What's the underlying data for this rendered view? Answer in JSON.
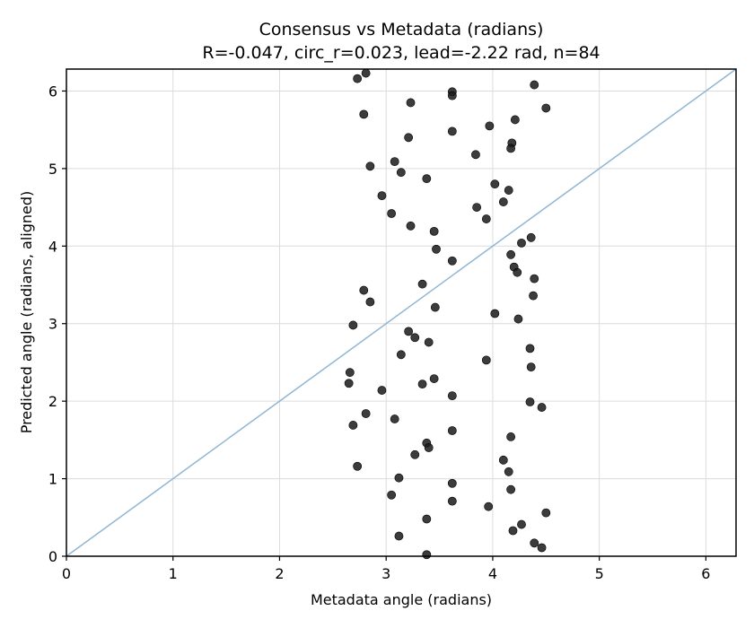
{
  "chart_data": {
    "type": "scatter",
    "title": "Consensus vs Metadata (radians)",
    "subtitle": "R=-0.047, circ_r=0.023, lead=-2.22 rad, n=84",
    "xlabel": "Metadata angle (radians)",
    "ylabel": "Predicted angle (radians, aligned)",
    "xlim": [
      0,
      6.283
    ],
    "ylim": [
      0,
      6.283
    ],
    "xticks": [
      0,
      1,
      2,
      3,
      4,
      5,
      6
    ],
    "yticks": [
      0,
      1,
      2,
      3,
      4,
      5,
      6
    ],
    "grid": true,
    "reference_line": {
      "x": [
        0,
        6.283
      ],
      "y": [
        0,
        6.283
      ],
      "color": "#8fb6d4"
    },
    "point_color": "#1a1a1a",
    "points": [
      {
        "x": 2.73,
        "y": 6.16
      },
      {
        "x": 2.81,
        "y": 6.23
      },
      {
        "x": 3.62,
        "y": 5.99
      },
      {
        "x": 3.62,
        "y": 5.94
      },
      {
        "x": 4.39,
        "y": 6.08
      },
      {
        "x": 2.79,
        "y": 5.7
      },
      {
        "x": 3.23,
        "y": 5.85
      },
      {
        "x": 4.5,
        "y": 5.78
      },
      {
        "x": 4.21,
        "y": 5.63
      },
      {
        "x": 3.97,
        "y": 5.55
      },
      {
        "x": 3.62,
        "y": 5.48
      },
      {
        "x": 3.21,
        "y": 5.4
      },
      {
        "x": 4.18,
        "y": 5.33
      },
      {
        "x": 4.17,
        "y": 5.26
      },
      {
        "x": 3.84,
        "y": 5.18
      },
      {
        "x": 3.08,
        "y": 5.09
      },
      {
        "x": 2.85,
        "y": 5.03
      },
      {
        "x": 3.14,
        "y": 4.95
      },
      {
        "x": 3.38,
        "y": 4.87
      },
      {
        "x": 4.02,
        "y": 4.8
      },
      {
        "x": 4.15,
        "y": 4.72
      },
      {
        "x": 2.96,
        "y": 4.65
      },
      {
        "x": 4.1,
        "y": 4.57
      },
      {
        "x": 3.85,
        "y": 4.5
      },
      {
        "x": 3.05,
        "y": 4.42
      },
      {
        "x": 3.94,
        "y": 4.35
      },
      {
        "x": 3.23,
        "y": 4.26
      },
      {
        "x": 3.45,
        "y": 4.19
      },
      {
        "x": 4.36,
        "y": 4.11
      },
      {
        "x": 4.27,
        "y": 4.04
      },
      {
        "x": 3.47,
        "y": 3.96
      },
      {
        "x": 4.17,
        "y": 3.89
      },
      {
        "x": 3.62,
        "y": 3.81
      },
      {
        "x": 4.2,
        "y": 3.73
      },
      {
        "x": 4.23,
        "y": 3.66
      },
      {
        "x": 4.39,
        "y": 3.58
      },
      {
        "x": 3.34,
        "y": 3.51
      },
      {
        "x": 2.79,
        "y": 3.43
      },
      {
        "x": 4.38,
        "y": 3.36
      },
      {
        "x": 2.85,
        "y": 3.28
      },
      {
        "x": 3.46,
        "y": 3.21
      },
      {
        "x": 4.02,
        "y": 3.13
      },
      {
        "x": 4.24,
        "y": 3.06
      },
      {
        "x": 2.69,
        "y": 2.98
      },
      {
        "x": 3.21,
        "y": 2.9
      },
      {
        "x": 3.27,
        "y": 2.82
      },
      {
        "x": 3.4,
        "y": 2.76
      },
      {
        "x": 4.35,
        "y": 2.68
      },
      {
        "x": 3.14,
        "y": 2.6
      },
      {
        "x": 3.94,
        "y": 2.53
      },
      {
        "x": 4.36,
        "y": 2.44
      },
      {
        "x": 2.66,
        "y": 2.37
      },
      {
        "x": 3.45,
        "y": 2.29
      },
      {
        "x": 2.65,
        "y": 2.23
      },
      {
        "x": 3.34,
        "y": 2.22
      },
      {
        "x": 2.96,
        "y": 2.14
      },
      {
        "x": 3.62,
        "y": 2.07
      },
      {
        "x": 4.35,
        "y": 1.99
      },
      {
        "x": 4.46,
        "y": 1.92
      },
      {
        "x": 2.81,
        "y": 1.84
      },
      {
        "x": 3.08,
        "y": 1.77
      },
      {
        "x": 2.69,
        "y": 1.69
      },
      {
        "x": 3.62,
        "y": 1.62
      },
      {
        "x": 4.17,
        "y": 1.54
      },
      {
        "x": 3.38,
        "y": 1.46
      },
      {
        "x": 3.4,
        "y": 1.4
      },
      {
        "x": 3.27,
        "y": 1.31
      },
      {
        "x": 4.1,
        "y": 1.24
      },
      {
        "x": 2.73,
        "y": 1.16
      },
      {
        "x": 4.15,
        "y": 1.09
      },
      {
        "x": 3.12,
        "y": 1.01
      },
      {
        "x": 3.62,
        "y": 0.94
      },
      {
        "x": 4.17,
        "y": 0.86
      },
      {
        "x": 3.05,
        "y": 0.79
      },
      {
        "x": 3.62,
        "y": 0.71
      },
      {
        "x": 3.96,
        "y": 0.64
      },
      {
        "x": 4.5,
        "y": 0.56
      },
      {
        "x": 3.38,
        "y": 0.48
      },
      {
        "x": 4.27,
        "y": 0.41
      },
      {
        "x": 4.19,
        "y": 0.33
      },
      {
        "x": 3.12,
        "y": 0.26
      },
      {
        "x": 4.39,
        "y": 0.17
      },
      {
        "x": 4.46,
        "y": 0.11
      },
      {
        "x": 3.38,
        "y": 0.02
      }
    ]
  }
}
